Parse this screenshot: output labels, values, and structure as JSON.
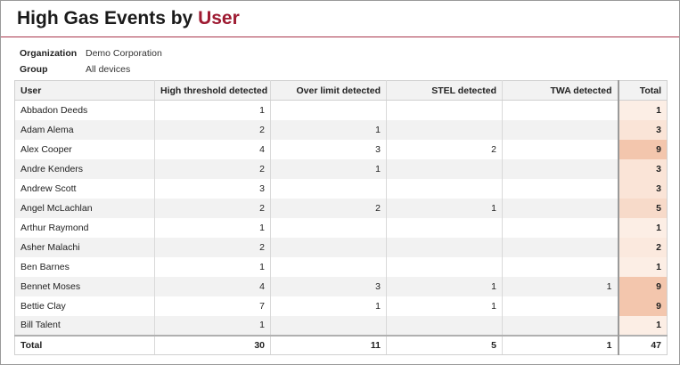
{
  "header": {
    "title_main": "High Gas Events by ",
    "title_accent": "User"
  },
  "meta": {
    "organization_label": "Organization",
    "organization_value": "Demo Corporation",
    "group_label": "Group",
    "group_value": "All devices"
  },
  "colors": {
    "accent": "#9e1b32",
    "heat_low": "#fdf3ec",
    "heat_high": "#f3c6ad"
  },
  "table": {
    "columns": [
      "User",
      "High threshold detected",
      "Over limit detected",
      "STEL detected",
      "TWA detected",
      "Total"
    ],
    "rows": [
      [
        "Abbadon Deeds",
        "1",
        "",
        "",
        "",
        "1"
      ],
      [
        "Adam Alema",
        "2",
        "1",
        "",
        "",
        "3"
      ],
      [
        "Alex Cooper",
        "4",
        "3",
        "2",
        "",
        "9"
      ],
      [
        "Andre Kenders",
        "2",
        "1",
        "",
        "",
        "3"
      ],
      [
        "Andrew Scott",
        "3",
        "",
        "",
        "",
        "3"
      ],
      [
        "Angel McLachlan",
        "2",
        "2",
        "1",
        "",
        "5"
      ],
      [
        "Arthur Raymond",
        "1",
        "",
        "",
        "",
        "1"
      ],
      [
        "Asher Malachi",
        "2",
        "",
        "",
        "",
        "2"
      ],
      [
        "Ben Barnes",
        "1",
        "",
        "",
        "",
        "1"
      ],
      [
        "Bennet Moses",
        "4",
        "3",
        "1",
        "1",
        "9"
      ],
      [
        "Bettie Clay",
        "7",
        "1",
        "1",
        "",
        "9"
      ],
      [
        "Bill Talent",
        "1",
        "",
        "",
        "",
        "1"
      ]
    ],
    "footer": [
      "Total",
      "30",
      "11",
      "5",
      "1",
      "47"
    ]
  }
}
